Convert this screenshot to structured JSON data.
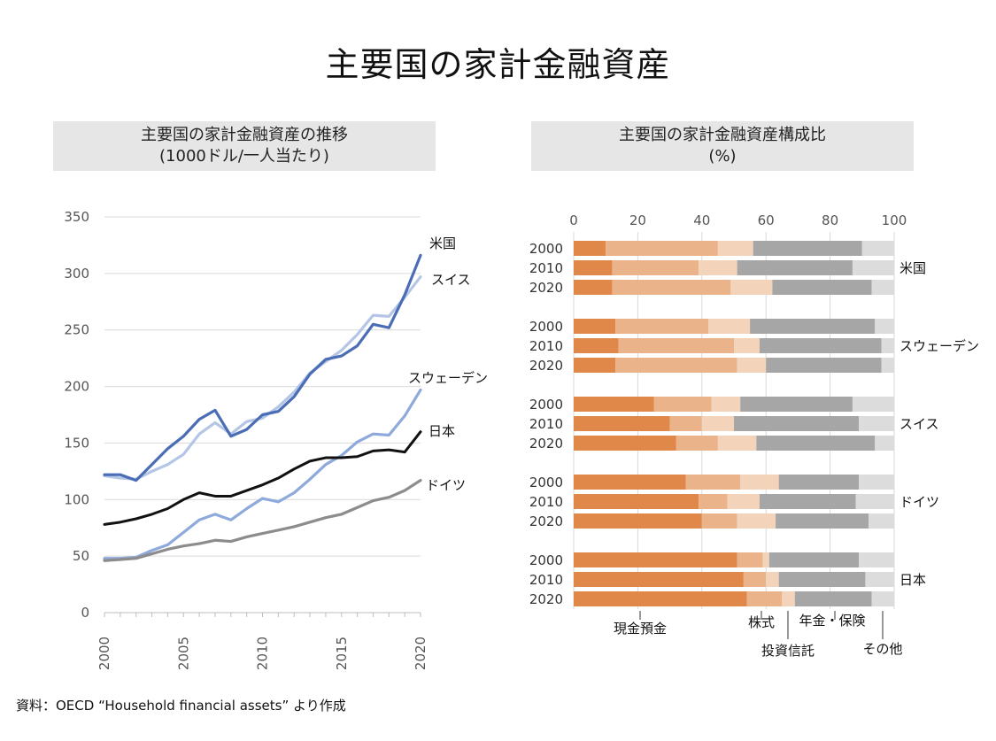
{
  "title": "主要国の家計金融資産",
  "source": "資料：OECD “Household financial assets” より作成",
  "colors": {
    "cash": "#e0874a",
    "trust": "#ebb38a",
    "stock": "#f4d3bb",
    "insurance": "#a6a6a6",
    "other": "#dcdcdc",
    "usa": "#4a6db5",
    "swiss": "#b4c5e6",
    "sweden": "#8ea9db",
    "japan": "#111111",
    "germany": "#8c8c8c"
  },
  "chart_data": [
    {
      "type": "line",
      "title": "主要国の家計金融資産の推移",
      "subtitle": "(1000ドル/一人当たり)",
      "x": [
        2000,
        2001,
        2002,
        2003,
        2004,
        2005,
        2006,
        2007,
        2008,
        2009,
        2010,
        2011,
        2012,
        2013,
        2014,
        2015,
        2016,
        2017,
        2018,
        2019,
        2020
      ],
      "xticks": [
        "2000",
        "2005",
        "2010",
        "2015",
        "2020"
      ],
      "yticks": [
        "0",
        "50",
        "100",
        "150",
        "200",
        "250",
        "300",
        "350"
      ],
      "ylim": [
        0,
        350
      ],
      "grid": true,
      "series": [
        {
          "name": "米国",
          "color": "#4a6db5",
          "values": [
            122,
            122,
            117,
            131,
            145,
            156,
            171,
            179,
            156,
            162,
            175,
            178,
            191,
            211,
            224,
            227,
            236,
            255,
            252,
            281,
            316
          ]
        },
        {
          "name": "スイス",
          "color": "#b4c5e6",
          "values": [
            121,
            119,
            118,
            125,
            131,
            140,
            158,
            168,
            158,
            169,
            172,
            182,
            195,
            212,
            222,
            232,
            246,
            263,
            262,
            279,
            297
          ]
        },
        {
          "name": "スウェーデン",
          "color": "#8ea9db",
          "values": [
            48,
            48,
            49,
            55,
            60,
            71,
            82,
            87,
            82,
            92,
            101,
            98,
            106,
            118,
            131,
            139,
            151,
            158,
            157,
            174,
            197
          ]
        },
        {
          "name": "日本",
          "color": "#111111",
          "values": [
            78,
            80,
            83,
            87,
            92,
            100,
            106,
            103,
            103,
            108,
            113,
            119,
            127,
            134,
            137,
            137,
            138,
            143,
            144,
            142,
            160
          ]
        },
        {
          "name": "ドイツ",
          "color": "#8c8c8c",
          "values": [
            46,
            47,
            48,
            52,
            56,
            59,
            61,
            64,
            63,
            67,
            70,
            73,
            76,
            80,
            84,
            87,
            93,
            99,
            102,
            108,
            117
          ]
        }
      ]
    },
    {
      "type": "bar",
      "orientation": "horizontal",
      "stacked": true,
      "title": "主要国の家計金融資産構成比",
      "subtitle": "(%)",
      "xlim": [
        0,
        100
      ],
      "xticks": [
        "0",
        "20",
        "40",
        "60",
        "80",
        "100"
      ],
      "grid": true,
      "segment_names": [
        "現金預金",
        "投資信託",
        "株式",
        "年金・保険",
        "その他"
      ],
      "groups": [
        {
          "country": "米国",
          "rows": [
            {
              "year": "2000",
              "values": [
                10,
                35,
                11,
                34,
                10
              ]
            },
            {
              "year": "2010",
              "values": [
                12,
                27,
                12,
                36,
                13
              ]
            },
            {
              "year": "2020",
              "values": [
                12,
                37,
                13,
                31,
                7
              ]
            }
          ]
        },
        {
          "country": "スウェーデン",
          "rows": [
            {
              "year": "2000",
              "values": [
                13,
                29,
                13,
                39,
                6
              ]
            },
            {
              "year": "2010",
              "values": [
                14,
                36,
                8,
                38,
                4
              ]
            },
            {
              "year": "2020",
              "values": [
                13,
                38,
                9,
                36,
                4
              ]
            }
          ]
        },
        {
          "country": "スイス",
          "rows": [
            {
              "year": "2000",
              "values": [
                25,
                18,
                9,
                35,
                13
              ]
            },
            {
              "year": "2010",
              "values": [
                30,
                10,
                10,
                39,
                11
              ]
            },
            {
              "year": "2020",
              "values": [
                32,
                13,
                12,
                37,
                6
              ]
            }
          ]
        },
        {
          "country": "ドイツ",
          "rows": [
            {
              "year": "2000",
              "values": [
                35,
                17,
                12,
                25,
                11
              ]
            },
            {
              "year": "2010",
              "values": [
                39,
                9,
                10,
                30,
                12
              ]
            },
            {
              "year": "2020",
              "values": [
                40,
                11,
                12,
                29,
                8
              ]
            }
          ]
        },
        {
          "country": "日本",
          "rows": [
            {
              "year": "2000",
              "values": [
                51,
                8,
                2,
                28,
                11
              ]
            },
            {
              "year": "2010",
              "values": [
                53,
                7,
                4,
                27,
                9
              ]
            },
            {
              "year": "2020",
              "values": [
                54,
                11,
                4,
                24,
                7
              ]
            }
          ]
        }
      ]
    }
  ]
}
